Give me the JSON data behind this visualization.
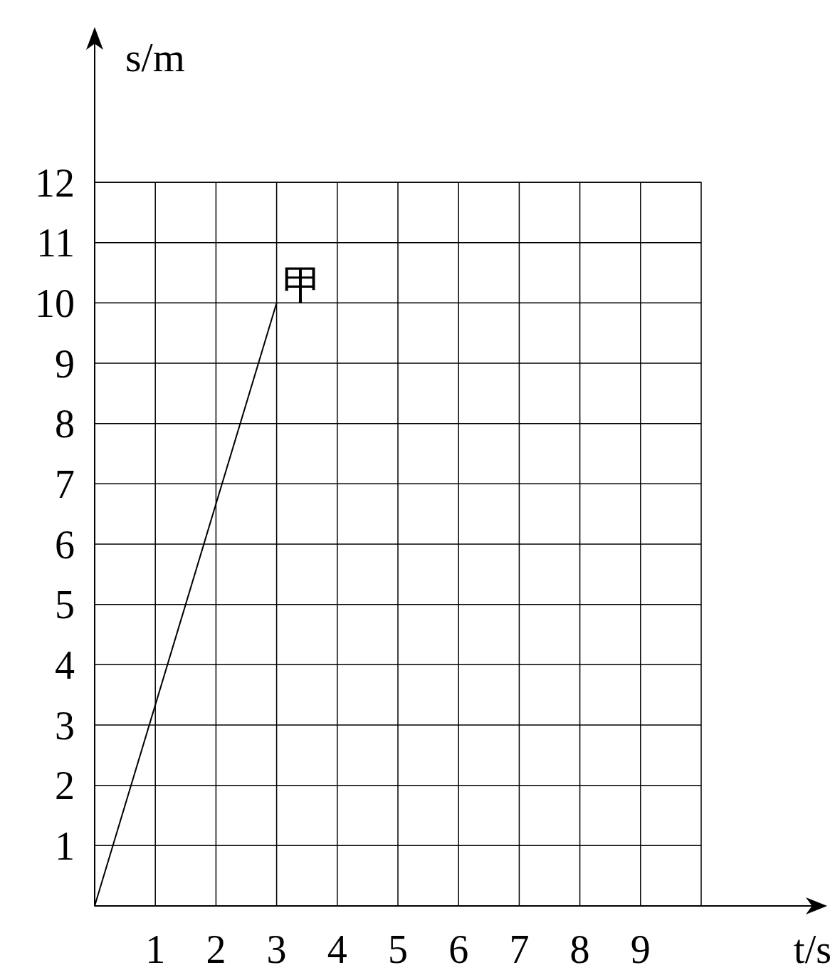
{
  "chart_data": {
    "type": "line",
    "xlabel": "t/s",
    "ylabel": "s/m",
    "xlim": [
      0,
      10
    ],
    "ylim": [
      0,
      12
    ],
    "xticks": [
      1,
      2,
      3,
      4,
      5,
      6,
      7,
      8,
      9
    ],
    "yticks": [
      1,
      2,
      3,
      4,
      5,
      6,
      7,
      8,
      9,
      10,
      11,
      12
    ],
    "grid": true,
    "marker": "none",
    "line_style": "solid",
    "series": [
      {
        "name": "甲",
        "color": "#000000",
        "x": [
          0,
          3
        ],
        "values": [
          0,
          10
        ]
      }
    ]
  }
}
